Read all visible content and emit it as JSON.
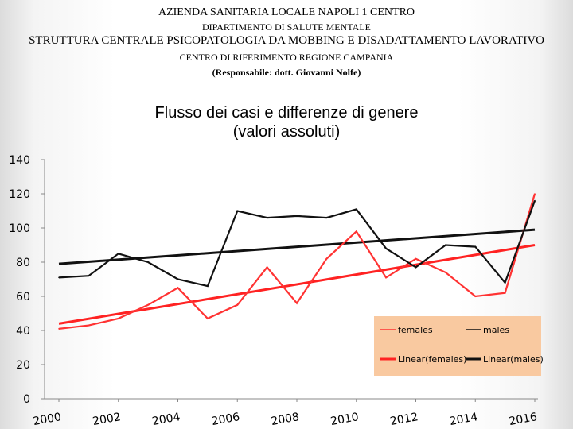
{
  "header": {
    "line1": "AZIENDA SANITARIA LOCALE NAPOLI 1 CENTRO",
    "line2": "DIPARTIMENTO DI SALUTE MENTALE",
    "line3": "STRUTTURA CENTRALE PSICOPATOLOGIA DA MOBBING E DISADATTAMENTO LAVORATIVO",
    "line4": "CENTRO DI RIFERIMENTO REGIONE CAMPANIA",
    "line5": "(Responsabile: dott. Giovanni Nolfe)"
  },
  "chart_data": {
    "type": "line",
    "title_line1": "Flusso dei casi e differenze di genere",
    "title_line2": "(valori assoluti)",
    "x": [
      2000,
      2001,
      2002,
      2003,
      2004,
      2005,
      2006,
      2007,
      2008,
      2009,
      2010,
      2011,
      2012,
      2013,
      2014,
      2015,
      2016
    ],
    "x_tick_labels": [
      "2000",
      "2002",
      "2004",
      "2006",
      "2008",
      "2010",
      "2012",
      "2014",
      "2016"
    ],
    "y_tick_labels": [
      "0",
      "20",
      "40",
      "60",
      "80",
      "100",
      "120",
      "140"
    ],
    "ylim": [
      0,
      140
    ],
    "series": [
      {
        "name": "females",
        "color": "#ff3333",
        "values": [
          41,
          43,
          47,
          55,
          65,
          47,
          55,
          77,
          56,
          82,
          98,
          71,
          82,
          74,
          60,
          62,
          120
        ]
      },
      {
        "name": "males",
        "color": "#111111",
        "values": [
          71,
          72,
          85,
          80,
          70,
          66,
          110,
          106,
          107,
          106,
          111,
          88,
          77,
          90,
          89,
          68,
          116
        ]
      }
    ],
    "trendlines": [
      {
        "name": "Linear(females)",
        "color": "#ff2222",
        "start": 44,
        "end": 90
      },
      {
        "name": "Linear(males)",
        "color": "#111111",
        "start": 79,
        "end": 99
      }
    ],
    "legend": {
      "position": "bottom-right",
      "background": "#f9c9a0",
      "items": [
        "females",
        "males",
        "Linear(females)",
        "Linear(males)"
      ]
    },
    "grid": false
  }
}
